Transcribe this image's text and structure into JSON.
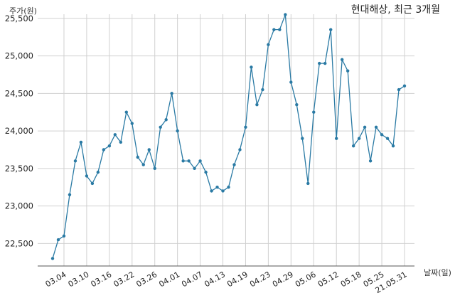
{
  "chart_data": {
    "type": "line",
    "title": "현대해상, 최근 3개월",
    "ylabel": "주가(원)",
    "xlabel": "날짜(일)",
    "ylim": [
      22200,
      25650
    ],
    "yticks": [
      22500,
      23000,
      23500,
      24000,
      24500,
      25000,
      25500
    ],
    "ytick_labels": [
      "22,500",
      "23,000",
      "23,500",
      "24,000",
      "24,500",
      "25,000",
      "25,500"
    ],
    "xtick_labels": [
      "03.04",
      "03.10",
      "03.16",
      "03.22",
      "03.26",
      "04.01",
      "04.07",
      "04.13",
      "04.19",
      "04.23",
      "04.29",
      "05.06",
      "05.12",
      "05.18",
      "05.25",
      "21.05.31"
    ],
    "xtick_index": [
      2,
      6,
      10,
      14,
      18,
      22,
      26,
      30,
      34,
      38,
      42,
      46,
      50,
      54,
      58,
      62
    ],
    "grid": true,
    "line_color": "#2a7aa4",
    "series": [
      {
        "values": [
          22300,
          22550,
          22600,
          23150,
          23600,
          23850,
          23400,
          23300,
          23450,
          23750,
          23800,
          23950,
          23850,
          24250,
          24100,
          23650,
          23550,
          23750,
          23500,
          24050,
          24150,
          24500,
          24000,
          23600,
          23600,
          23500,
          23600,
          23450,
          23200,
          23250,
          23200,
          23250,
          23550,
          23750,
          24050,
          24850,
          24350,
          24550,
          25150,
          25350,
          25350,
          25550,
          24650,
          24350,
          23900,
          23300,
          24250,
          24900,
          24900,
          25350,
          23900,
          24950,
          24800,
          23800,
          23900,
          24050,
          23600,
          24050,
          23950,
          23900,
          23800,
          24550,
          24600
        ]
      }
    ]
  }
}
